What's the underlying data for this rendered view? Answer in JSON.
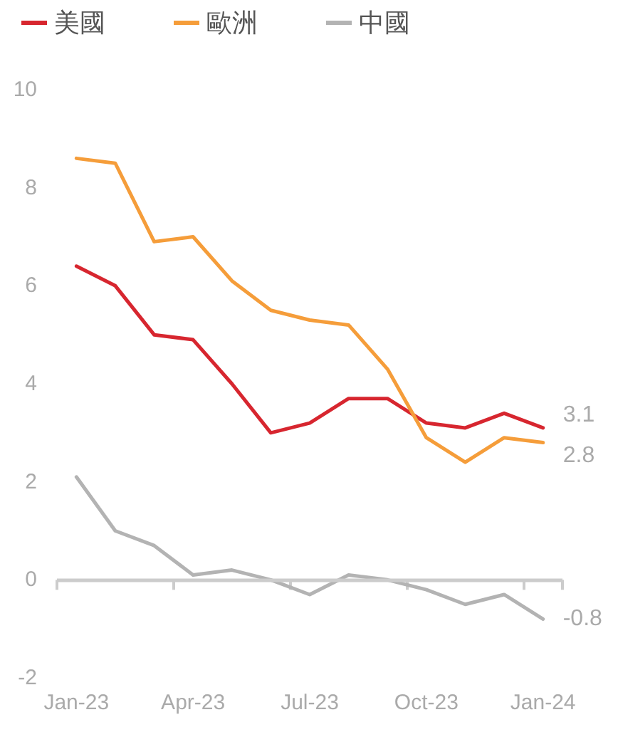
{
  "chart_data": {
    "type": "line",
    "categories": [
      "Jan-23",
      null,
      null,
      "Apr-23",
      null,
      null,
      "Jul-23",
      null,
      null,
      "Oct-23",
      null,
      null,
      "Jan-24"
    ],
    "series": [
      {
        "name": "美國",
        "color": "#d7262f",
        "values": [
          6.4,
          6.0,
          5.0,
          4.9,
          4.0,
          3.0,
          3.2,
          3.7,
          3.7,
          3.2,
          3.1,
          3.4,
          3.1
        ],
        "value_labels": [
          null,
          null,
          null,
          null,
          null,
          null,
          null,
          null,
          null,
          null,
          null,
          null,
          "3.1"
        ]
      },
      {
        "name": "歐洲",
        "color": "#f59d3a",
        "values": [
          8.6,
          8.5,
          6.9,
          7.0,
          6.1,
          5.5,
          5.3,
          5.2,
          4.3,
          2.9,
          2.4,
          2.9,
          2.8
        ],
        "value_labels": [
          null,
          null,
          null,
          null,
          null,
          null,
          null,
          null,
          null,
          null,
          null,
          null,
          "2.8"
        ]
      },
      {
        "name": "中國",
        "color": "#b3b3b3",
        "values": [
          2.1,
          1.0,
          0.7,
          0.1,
          0.2,
          0.0,
          -0.3,
          0.1,
          0.0,
          -0.2,
          -0.5,
          -0.3,
          -0.8
        ],
        "value_labels": [
          null,
          null,
          null,
          null,
          null,
          null,
          null,
          null,
          null,
          null,
          null,
          null,
          "-0.8"
        ]
      }
    ],
    "ylim": [
      -2,
      10
    ],
    "yticks": [
      -2,
      0,
      2,
      4,
      6,
      8,
      10
    ],
    "grid": false,
    "ref_lines": [
      {
        "axis": "y",
        "value": 0,
        "color": "#cccccc"
      }
    ],
    "legend": "top left",
    "marker": "none",
    "line_style": "solid"
  }
}
